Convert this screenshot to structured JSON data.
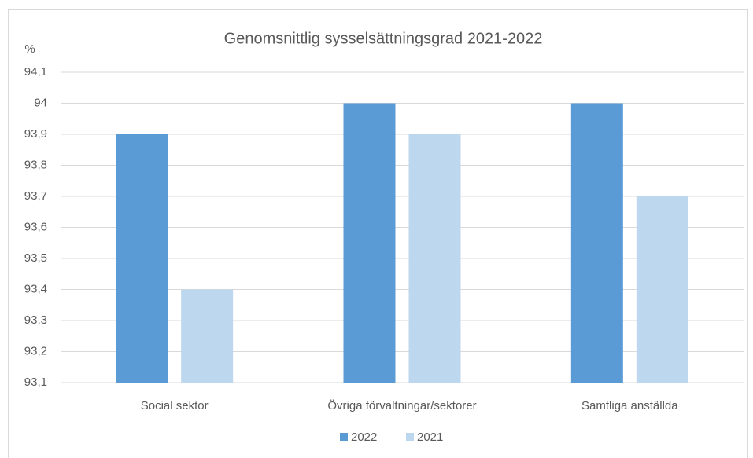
{
  "chart_data": {
    "type": "bar",
    "title": "Genomsnittlig sysselsättningsgrad 2021-2022",
    "y_label": "%",
    "categories": [
      "Social sektor",
      "Övriga förvaltningar/sektorer",
      "Samtliga anställda"
    ],
    "series": [
      {
        "name": "2022",
        "color": "#5b9bd5",
        "values": [
          93.9,
          94,
          94
        ]
      },
      {
        "name": "2021",
        "color": "#bdd7ee",
        "values": [
          93.4,
          93.9,
          93.7
        ]
      }
    ],
    "ylim": [
      93.1,
      94.1
    ],
    "yticks": [
      {
        "value": 93.1,
        "label": "93,1"
      },
      {
        "value": 93.2,
        "label": "93,2"
      },
      {
        "value": 93.3,
        "label": "93,3"
      },
      {
        "value": 93.4,
        "label": "93,4"
      },
      {
        "value": 93.5,
        "label": "93,5"
      },
      {
        "value": 93.6,
        "label": "93,6"
      },
      {
        "value": 93.7,
        "label": "93,7"
      },
      {
        "value": 93.8,
        "label": "93,8"
      },
      {
        "value": 93.9,
        "label": "93,9"
      },
      94,
      {
        "value": 94.1,
        "label": "94,1"
      }
    ],
    "grid": true,
    "legend": "bottom"
  }
}
